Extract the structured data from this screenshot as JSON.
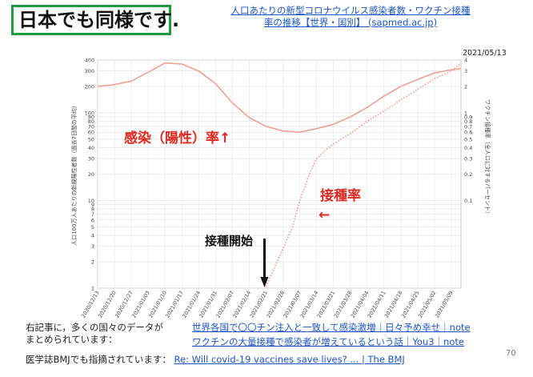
{
  "slide": {
    "title": "日本でも同様です.",
    "source_link": "人口あたりの新型コロナウイルス感染者数・ワクチン接種率の推移【世界・国別】 (sapmed.ac.jp)",
    "date_label": "2021/05/13",
    "page_number": "70"
  },
  "footer": {
    "line1_prefix": "右記事に，多くの国々のデータが",
    "line1_prefix2": "まとめられています：",
    "link1": "世界各国で〇〇チン注入と一致して感染激増｜日々予め幸せ｜note",
    "link2": "ワクチンの大量接種で感染者が増えているという話｜You3｜note",
    "line3_prefix": "医学誌BMJでも指摘されています：",
    "link3": "Re: Will covid-19 vaccines save lives? ... | The BMJ"
  },
  "colors": {
    "title_border": "#1f9a3c",
    "link": "#1a55c8",
    "series": "#f0a090",
    "annotation_red": "#e0281e",
    "arrow_black": "#111111"
  },
  "chart_data": {
    "type": "line",
    "title": "",
    "xlabel": "",
    "ylabel_left": "人口100万人あたりの新規陽性者数（過去7日間の平均）",
    "ylabel_right": "ワクチン接種率（全人口に対するパーセント）",
    "y_scale": "log",
    "ylim_left": [
      1,
      400
    ],
    "ylim_right": [
      0.01,
      4
    ],
    "grid": true,
    "y_ticks_left": [
      "400",
      "300",
      "200",
      "100",
      "90",
      "80",
      "70",
      "60",
      "50",
      "40",
      "30",
      "20",
      "10",
      "9",
      "8",
      "7",
      "6",
      "5",
      "4",
      "3",
      "2",
      "1"
    ],
    "y_ticks_right": [
      "4",
      "3",
      "2",
      "1",
      "0.9",
      "0.8",
      "0.7",
      "0.6",
      "0.5",
      "0.4",
      "0.3",
      "0.2",
      "0.1"
    ],
    "x_tick_labels": [
      "2020/12/13",
      "2020/12/20",
      "2020/12/27",
      "2021/01/03",
      "2021/01/10",
      "2021/01/17",
      "2021/01/24",
      "2021/01/31",
      "2021/02/07",
      "2021/02/14",
      "2021/02/21",
      "2021/02/28",
      "2021/03/07",
      "2021/03/14",
      "2021/03/21",
      "2021/03/28",
      "2021/04/04",
      "2021/04/11",
      "2021/04/18",
      "2021/04/25",
      "2021/05/02",
      "2021/05/09"
    ],
    "series": [
      {
        "name": "",
        "style": "solid",
        "axis": "left",
        "x": [
          "2020/12/13",
          "2020/12/20",
          "2020/12/27",
          "2021/01/03",
          "2021/01/10",
          "2021/01/17",
          "2021/01/24",
          "2021/01/31",
          "2021/02/07",
          "2021/02/14",
          "2021/02/21",
          "2021/02/28",
          "2021/03/07",
          "2021/03/14",
          "2021/03/21",
          "2021/03/28",
          "2021/04/04",
          "2021/04/11",
          "2021/04/18",
          "2021/04/25",
          "2021/05/02",
          "2021/05/09",
          "2021/05/13"
        ],
        "values": [
          200,
          210,
          230,
          290,
          370,
          360,
          300,
          215,
          130,
          88,
          70,
          62,
          60,
          66,
          74,
          90,
          115,
          155,
          200,
          240,
          285,
          310,
          320
        ]
      },
      {
        "name": "",
        "style": "dotted",
        "axis": "left",
        "x": [
          "2021/02/21",
          "2021/02/24",
          "2021/02/28",
          "2021/03/04",
          "2021/03/07",
          "2021/03/11",
          "2021/03/14",
          "2021/03/18",
          "2021/03/21",
          "2021/03/28",
          "2021/04/04",
          "2021/04/11",
          "2021/04/18",
          "2021/04/25",
          "2021/05/02",
          "2021/05/09",
          "2021/05/13"
        ],
        "values": [
          1.05,
          1.6,
          2.8,
          5,
          10,
          20,
          30,
          38,
          44,
          58,
          80,
          105,
          140,
          185,
          245,
          300,
          370
        ]
      }
    ],
    "annotations": [
      {
        "text": "感染（陽性）率↑",
        "color": "#e0281e"
      },
      {
        "text": "接種率",
        "color": "#e0281e"
      },
      {
        "text": "←",
        "color": "#e0281e"
      },
      {
        "text": "接種開始",
        "color": "#111111"
      }
    ]
  }
}
